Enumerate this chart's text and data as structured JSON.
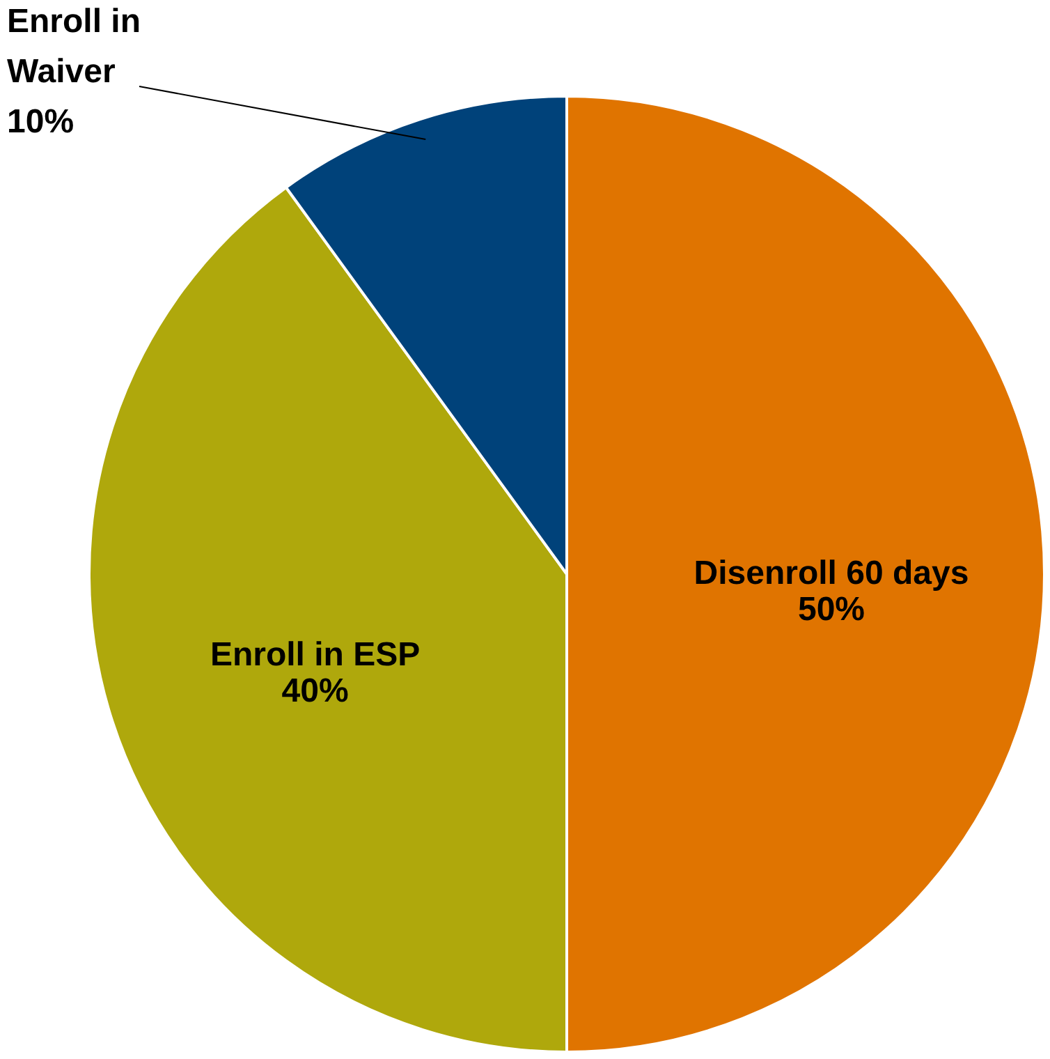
{
  "chart_data": {
    "type": "pie",
    "categories": [
      "Disenroll 60 days",
      "Enroll in ESP",
      "Enroll in Waiver"
    ],
    "values": [
      50,
      40,
      10
    ],
    "colors": [
      "#e07400",
      "#afa80c",
      "#00427a"
    ],
    "value_labels": [
      "50%",
      "40%",
      "10%"
    ]
  }
}
